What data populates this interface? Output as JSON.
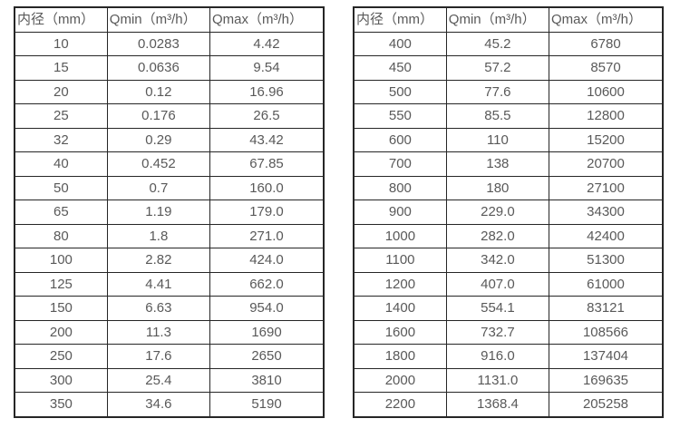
{
  "colors": {
    "border": "#262626",
    "text": "#595959",
    "background": "#ffffff"
  },
  "tables": [
    {
      "name": "flow-spec-table-small-diameters",
      "headers": [
        "内径（mm）",
        "Qmin（m³/h）",
        "Qmax（m³/h）"
      ],
      "rows": [
        [
          "10",
          "0.0283",
          "4.42"
        ],
        [
          "15",
          "0.0636",
          "9.54"
        ],
        [
          "20",
          "0.12",
          "16.96"
        ],
        [
          "25",
          "0.176",
          "26.5"
        ],
        [
          "32",
          "0.29",
          "43.42"
        ],
        [
          "40",
          "0.452",
          "67.85"
        ],
        [
          "50",
          "0.7",
          "160.0"
        ],
        [
          "65",
          "1.19",
          "179.0"
        ],
        [
          "80",
          "1.8",
          "271.0"
        ],
        [
          "100",
          "2.82",
          "424.0"
        ],
        [
          "125",
          "4.41",
          "662.0"
        ],
        [
          "150",
          "6.63",
          "954.0"
        ],
        [
          "200",
          "11.3",
          "1690"
        ],
        [
          "250",
          "17.6",
          "2650"
        ],
        [
          "300",
          "25.4",
          "3810"
        ],
        [
          "350",
          "34.6",
          "5190"
        ]
      ]
    },
    {
      "name": "flow-spec-table-large-diameters",
      "headers": [
        "内径（mm）",
        "Qmin（m³/h）",
        "Qmax（m³/h）"
      ],
      "rows": [
        [
          "400",
          "45.2",
          "6780"
        ],
        [
          "450",
          "57.2",
          "8570"
        ],
        [
          "500",
          "77.6",
          "10600"
        ],
        [
          "550",
          "85.5",
          "12800"
        ],
        [
          "600",
          "110",
          "15200"
        ],
        [
          "700",
          "138",
          "20700"
        ],
        [
          "800",
          "180",
          "27100"
        ],
        [
          "900",
          "229.0",
          "34300"
        ],
        [
          "1000",
          "282.0",
          "42400"
        ],
        [
          "1100",
          "342.0",
          "51300"
        ],
        [
          "1200",
          "407.0",
          "61000"
        ],
        [
          "1400",
          "554.1",
          "83121"
        ],
        [
          "1600",
          "732.7",
          "108566"
        ],
        [
          "1800",
          "916.0",
          "137404"
        ],
        [
          "2000",
          "1131.0",
          "169635"
        ],
        [
          "2200",
          "1368.4",
          "205258"
        ]
      ]
    }
  ]
}
